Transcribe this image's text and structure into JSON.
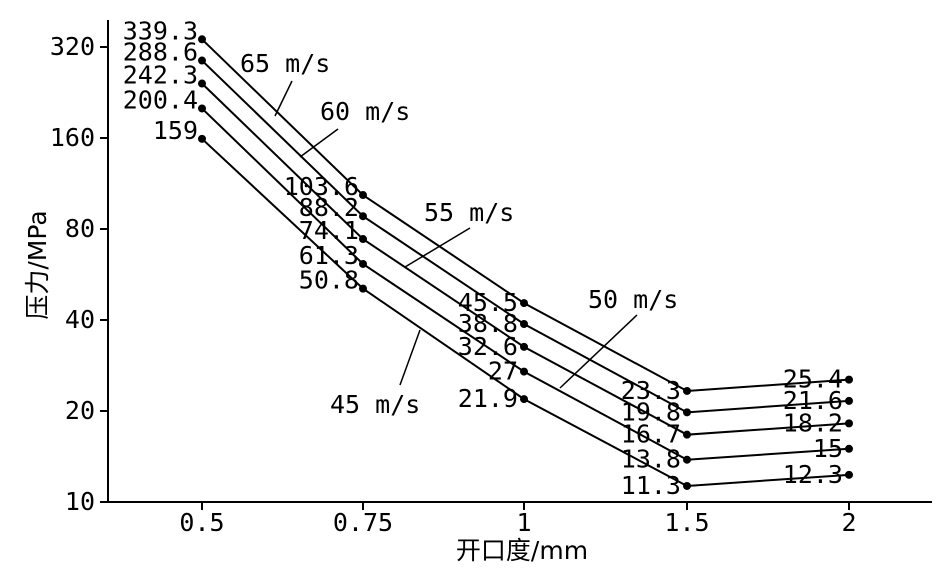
{
  "chart_data": {
    "type": "line",
    "xlabel": "开口度/mm",
    "ylabel": "压力/MPa",
    "y_scale": "log2",
    "ylim": [
      10,
      320
    ],
    "x": [
      "0.5",
      "0.75",
      "1",
      "1.5",
      "2"
    ],
    "yticks": [
      "10",
      "20",
      "40",
      "80",
      "160",
      "320"
    ],
    "grid": false,
    "series": [
      {
        "name": "65 m/s",
        "values": [
          339.3,
          103.6,
          45.5,
          23.3,
          25.4
        ],
        "labels": [
          "339.3",
          "103.6",
          "45.5",
          "23.3",
          "25.4"
        ]
      },
      {
        "name": "60 m/s",
        "values": [
          288.6,
          88.2,
          38.8,
          19.8,
          21.6
        ],
        "labels": [
          "288.6",
          "88.2",
          "38.8",
          "19.8",
          "21.6"
        ]
      },
      {
        "name": "55 m/s",
        "values": [
          242.3,
          74.1,
          32.6,
          16.7,
          18.2
        ],
        "labels": [
          "242.3",
          "74.1",
          "32.6",
          "16.7",
          "18.2"
        ]
      },
      {
        "name": "50 m/s",
        "values": [
          200.4,
          61.3,
          27,
          13.8,
          15
        ],
        "labels": [
          "200.4",
          "61.3",
          "27",
          "13.8",
          "15"
        ]
      },
      {
        "name": "45 m/s",
        "values": [
          159,
          50.8,
          21.9,
          11.3,
          12.3
        ],
        "labels": [
          "159",
          "50.8",
          "21.9",
          "11.3",
          "12.3"
        ]
      }
    ]
  }
}
